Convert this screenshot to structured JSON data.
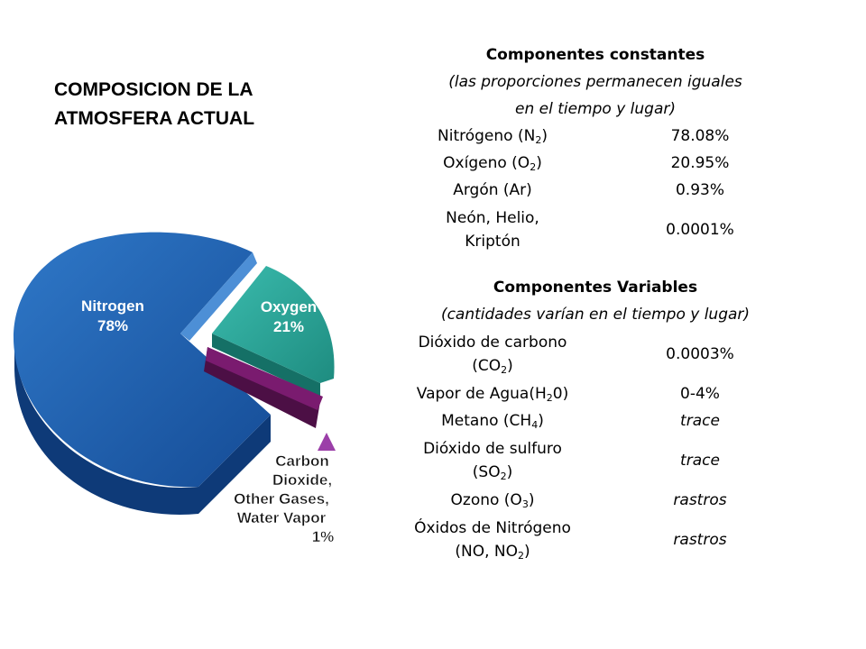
{
  "title": "COMPOSICION DE LA ATMOSFERA ACTUAL",
  "chart_data": {
    "type": "pie",
    "title": "",
    "slices": [
      {
        "label": "Nitrogen",
        "pct_label": "78%",
        "value": 78,
        "color": "#1a5fb0"
      },
      {
        "label": "Oxygen",
        "pct_label": "21%",
        "value": 21,
        "color": "#2aa79b"
      },
      {
        "label": "Carbon Dioxide, Other Gases, Water Vapor",
        "pct_label": "1%",
        "value": 1,
        "color": "#7a1b6f"
      }
    ],
    "labels": {
      "nitrogen_name": "Nitrogen",
      "nitrogen_pct": "78%",
      "oxygen_name": "Oxygen",
      "oxygen_pct": "21%",
      "other_line1": "Carbon",
      "other_line2": "Dioxide,",
      "other_line3": "Other Gases,",
      "other_line4": "Water Vapor",
      "other_pct": "1%"
    }
  },
  "constant": {
    "heading": "Componentes constantes",
    "subheading_line1": "(las proporciones permanecen iguales",
    "subheading_line2": "en el tiempo y lugar)",
    "rows": [
      {
        "name_main": "Nitrógeno (N",
        "name_sub": "2",
        "name_end": ")",
        "value": "78.08%"
      },
      {
        "name_main": "Oxígeno (O",
        "name_sub": "2",
        "name_end": ")",
        "value": "20.95%"
      },
      {
        "name_main": "Argón (Ar)",
        "value": "0.93%"
      },
      {
        "name_line1": "Neón, Helio,",
        "name_line2": "Kriptón",
        "value": "0.0001%"
      }
    ]
  },
  "variable": {
    "heading": "Componentes Variables",
    "subheading": "(cantidades varían en el tiempo y lugar)",
    "rows": [
      {
        "name_line1": "Dióxido de carbono",
        "name_main": "(CO",
        "name_sub": "2",
        "name_end": ")",
        "value": "0.0003%"
      },
      {
        "name_main": "Vapor de Agua(H",
        "name_sub": "2",
        "name_end": "0)",
        "value": "0-4%"
      },
      {
        "name_main": "Metano (CH",
        "name_sub": "4",
        "name_end": ")",
        "value": "trace"
      },
      {
        "name_line1": "Dióxido de sulfuro",
        "name_main": "(SO",
        "name_sub": "2",
        "name_end": ")",
        "value": "trace"
      },
      {
        "name_main": "Ozono (O",
        "name_sub": "3",
        "name_end": ")",
        "value": "rastros"
      },
      {
        "name_line1": "Óxidos de Nitrógeno",
        "name_main": "(NO, NO",
        "name_sub": "2",
        "name_end": ")",
        "value": "rastros"
      }
    ]
  }
}
